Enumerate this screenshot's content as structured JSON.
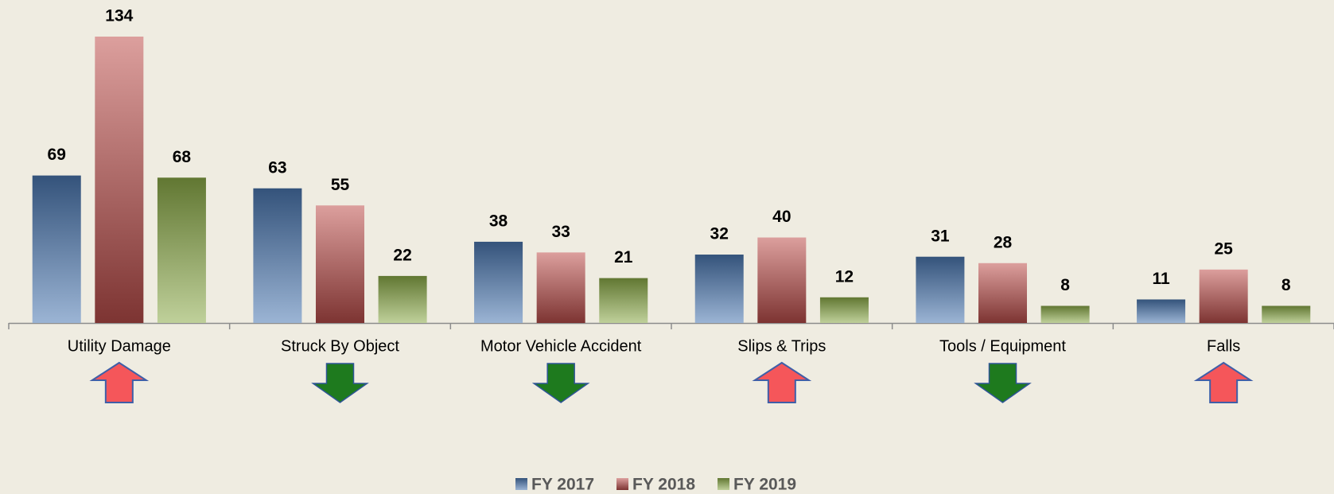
{
  "chart_data": {
    "type": "bar",
    "categories": [
      "Utility Damage",
      "Struck By Object",
      "Motor Vehicle Accident",
      "Slips & Trips",
      "Tools / Equipment",
      "Falls"
    ],
    "series": [
      {
        "name": "FY 2017",
        "color": "#4a76b0",
        "values": [
          69,
          63,
          38,
          32,
          31,
          11
        ]
      },
      {
        "name": "FY 2018",
        "color": "#c0504d",
        "values": [
          134,
          55,
          33,
          40,
          28,
          25
        ]
      },
      {
        "name": "FY 2019",
        "color": "#8aaa48",
        "values": [
          68,
          22,
          21,
          12,
          8,
          8
        ]
      }
    ],
    "legend": "bottom"
  }
}
